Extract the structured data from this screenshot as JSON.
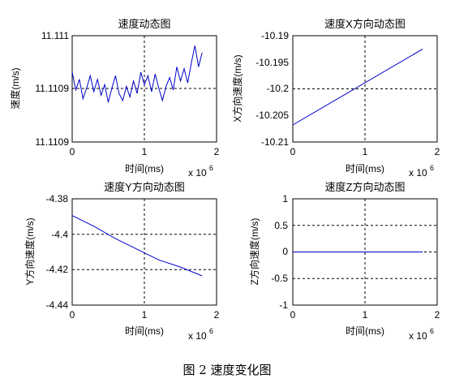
{
  "caption": "图 2  速度变化图",
  "chart_data": [
    {
      "type": "line",
      "title": "速度动态图",
      "xlabel": "时间(ms)",
      "ylabel": "速度(m/s)",
      "x_multiplier": "x 10",
      "x_multiplier_exp": "6",
      "xlim": [
        0,
        2
      ],
      "ylim": [
        11.11085,
        11.11115
      ],
      "xticks": [
        "0",
        "1",
        "2"
      ],
      "yticks": [
        "11.1109",
        "11.1109",
        "11.111"
      ],
      "grid": "dashed at 1 and 11.111",
      "line_color": "#0000cc",
      "x": [
        0,
        0.05,
        0.1,
        0.15,
        0.2,
        0.25,
        0.3,
        0.35,
        0.4,
        0.45,
        0.5,
        0.55,
        0.6,
        0.65,
        0.7,
        0.75,
        0.8,
        0.85,
        0.9,
        0.95,
        1.0,
        1.05,
        1.1,
        1.15,
        1.2,
        1.25,
        1.3,
        1.35,
        1.4,
        1.45,
        1.5,
        1.55,
        1.6,
        1.65,
        1.7,
        1.75,
        1.8
      ],
      "y": [
        11.111047,
        11.110997,
        11.111027,
        11.110972,
        11.111002,
        11.111037,
        11.110992,
        11.111027,
        11.110982,
        11.111012,
        11.110962,
        11.111002,
        11.111037,
        11.110987,
        11.110967,
        11.111007,
        11.110977,
        11.111022,
        11.110987,
        11.111047,
        11.111012,
        11.111037,
        11.110992,
        11.111042,
        11.111002,
        11.110967,
        11.111007,
        11.111032,
        11.110997,
        11.111062,
        11.111022,
        11.111057,
        11.111017,
        11.111072,
        11.111122,
        11.111062,
        11.111102
      ]
    },
    {
      "type": "line",
      "title": "速度X方向动态图",
      "xlabel": "时间(ms)",
      "ylabel": "X方向速度(m/s)",
      "x_multiplier": "x 10",
      "x_multiplier_exp": "6",
      "xlim": [
        0,
        2
      ],
      "ylim": [
        -10.21,
        -10.19
      ],
      "xticks": [
        "0",
        "1",
        "2"
      ],
      "yticks": [
        "-10.19",
        "-10.195",
        "-10.2",
        "-10.205",
        "-10.21"
      ],
      "grid": "dashed at 1 and -10.2",
      "line_color": "#0000cc",
      "x": [
        0,
        1.8
      ],
      "y": [
        -10.2068,
        -10.1925
      ]
    },
    {
      "type": "line",
      "title": "速度Y方向动态图",
      "xlabel": "时间(ms)",
      "ylabel": "Y方向速度(m/s)",
      "x_multiplier": "x 10",
      "x_multiplier_exp": "6",
      "xlim": [
        0,
        2
      ],
      "ylim": [
        -4.44,
        -4.38
      ],
      "xticks": [
        "0",
        "1",
        "2"
      ],
      "yticks": [
        "-4.38",
        "-4.4",
        "-4.42",
        "-4.44"
      ],
      "grid": "dashed at 1, -4.4 and -4.42",
      "line_color": "#0000cc",
      "x": [
        0,
        0.3,
        0.6,
        0.9,
        1.2,
        1.5,
        1.8
      ],
      "y": [
        -4.3895,
        -4.3955,
        -4.4025,
        -4.4085,
        -4.4145,
        -4.4185,
        -4.4235
      ]
    },
    {
      "type": "line",
      "title": "速度Z方向动态图",
      "xlabel": "时间(ms)",
      "ylabel": "Z方向速度(m/s)",
      "x_multiplier": "x 10",
      "x_multiplier_exp": "6",
      "xlim": [
        0,
        2
      ],
      "ylim": [
        -1,
        1
      ],
      "xticks": [
        "0",
        "1",
        "2"
      ],
      "yticks": [
        "1",
        "0.5",
        "0",
        "-0.5",
        "-1"
      ],
      "grid": "dashed at 1, 0.5, 0 and -0.5",
      "line_color": "#0000cc",
      "x": [
        0,
        1.8
      ],
      "y": [
        0,
        0
      ]
    }
  ]
}
